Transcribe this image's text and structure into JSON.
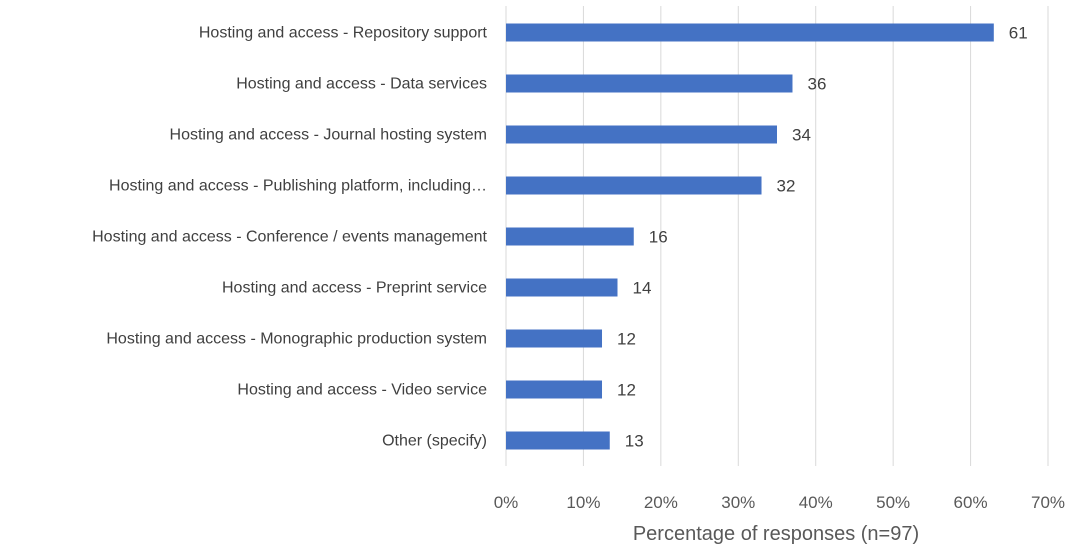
{
  "chart_data": {
    "type": "bar",
    "orientation": "horizontal",
    "categories": [
      "Hosting and access - Repository support",
      "Hosting and access - Data services",
      "Hosting and access - Journal hosting system",
      "Hosting and access - Publishing platform, including…",
      "Hosting and access - Conference / events management",
      "Hosting and access - Preprint service",
      "Hosting and access - Monographic production system",
      "Hosting and access - Video service",
      "Other (specify)"
    ],
    "series": [
      {
        "percentages": [
          63,
          37,
          35,
          33,
          16.5,
          14.4,
          12.4,
          12.4,
          13.4
        ],
        "counts": [
          61,
          36,
          34,
          32,
          16,
          14,
          12,
          12,
          13
        ]
      }
    ],
    "xlabel": "Percentage of responses (n=97)",
    "ylabel": "",
    "xlim": [
      0,
      70
    ],
    "xticks": [
      "0%",
      "10%",
      "20%",
      "30%",
      "40%",
      "50%",
      "60%",
      "70%"
    ],
    "grid": true,
    "legend": "none",
    "bar_color": "#4472C4",
    "grid_color": "#D9D9D9"
  }
}
